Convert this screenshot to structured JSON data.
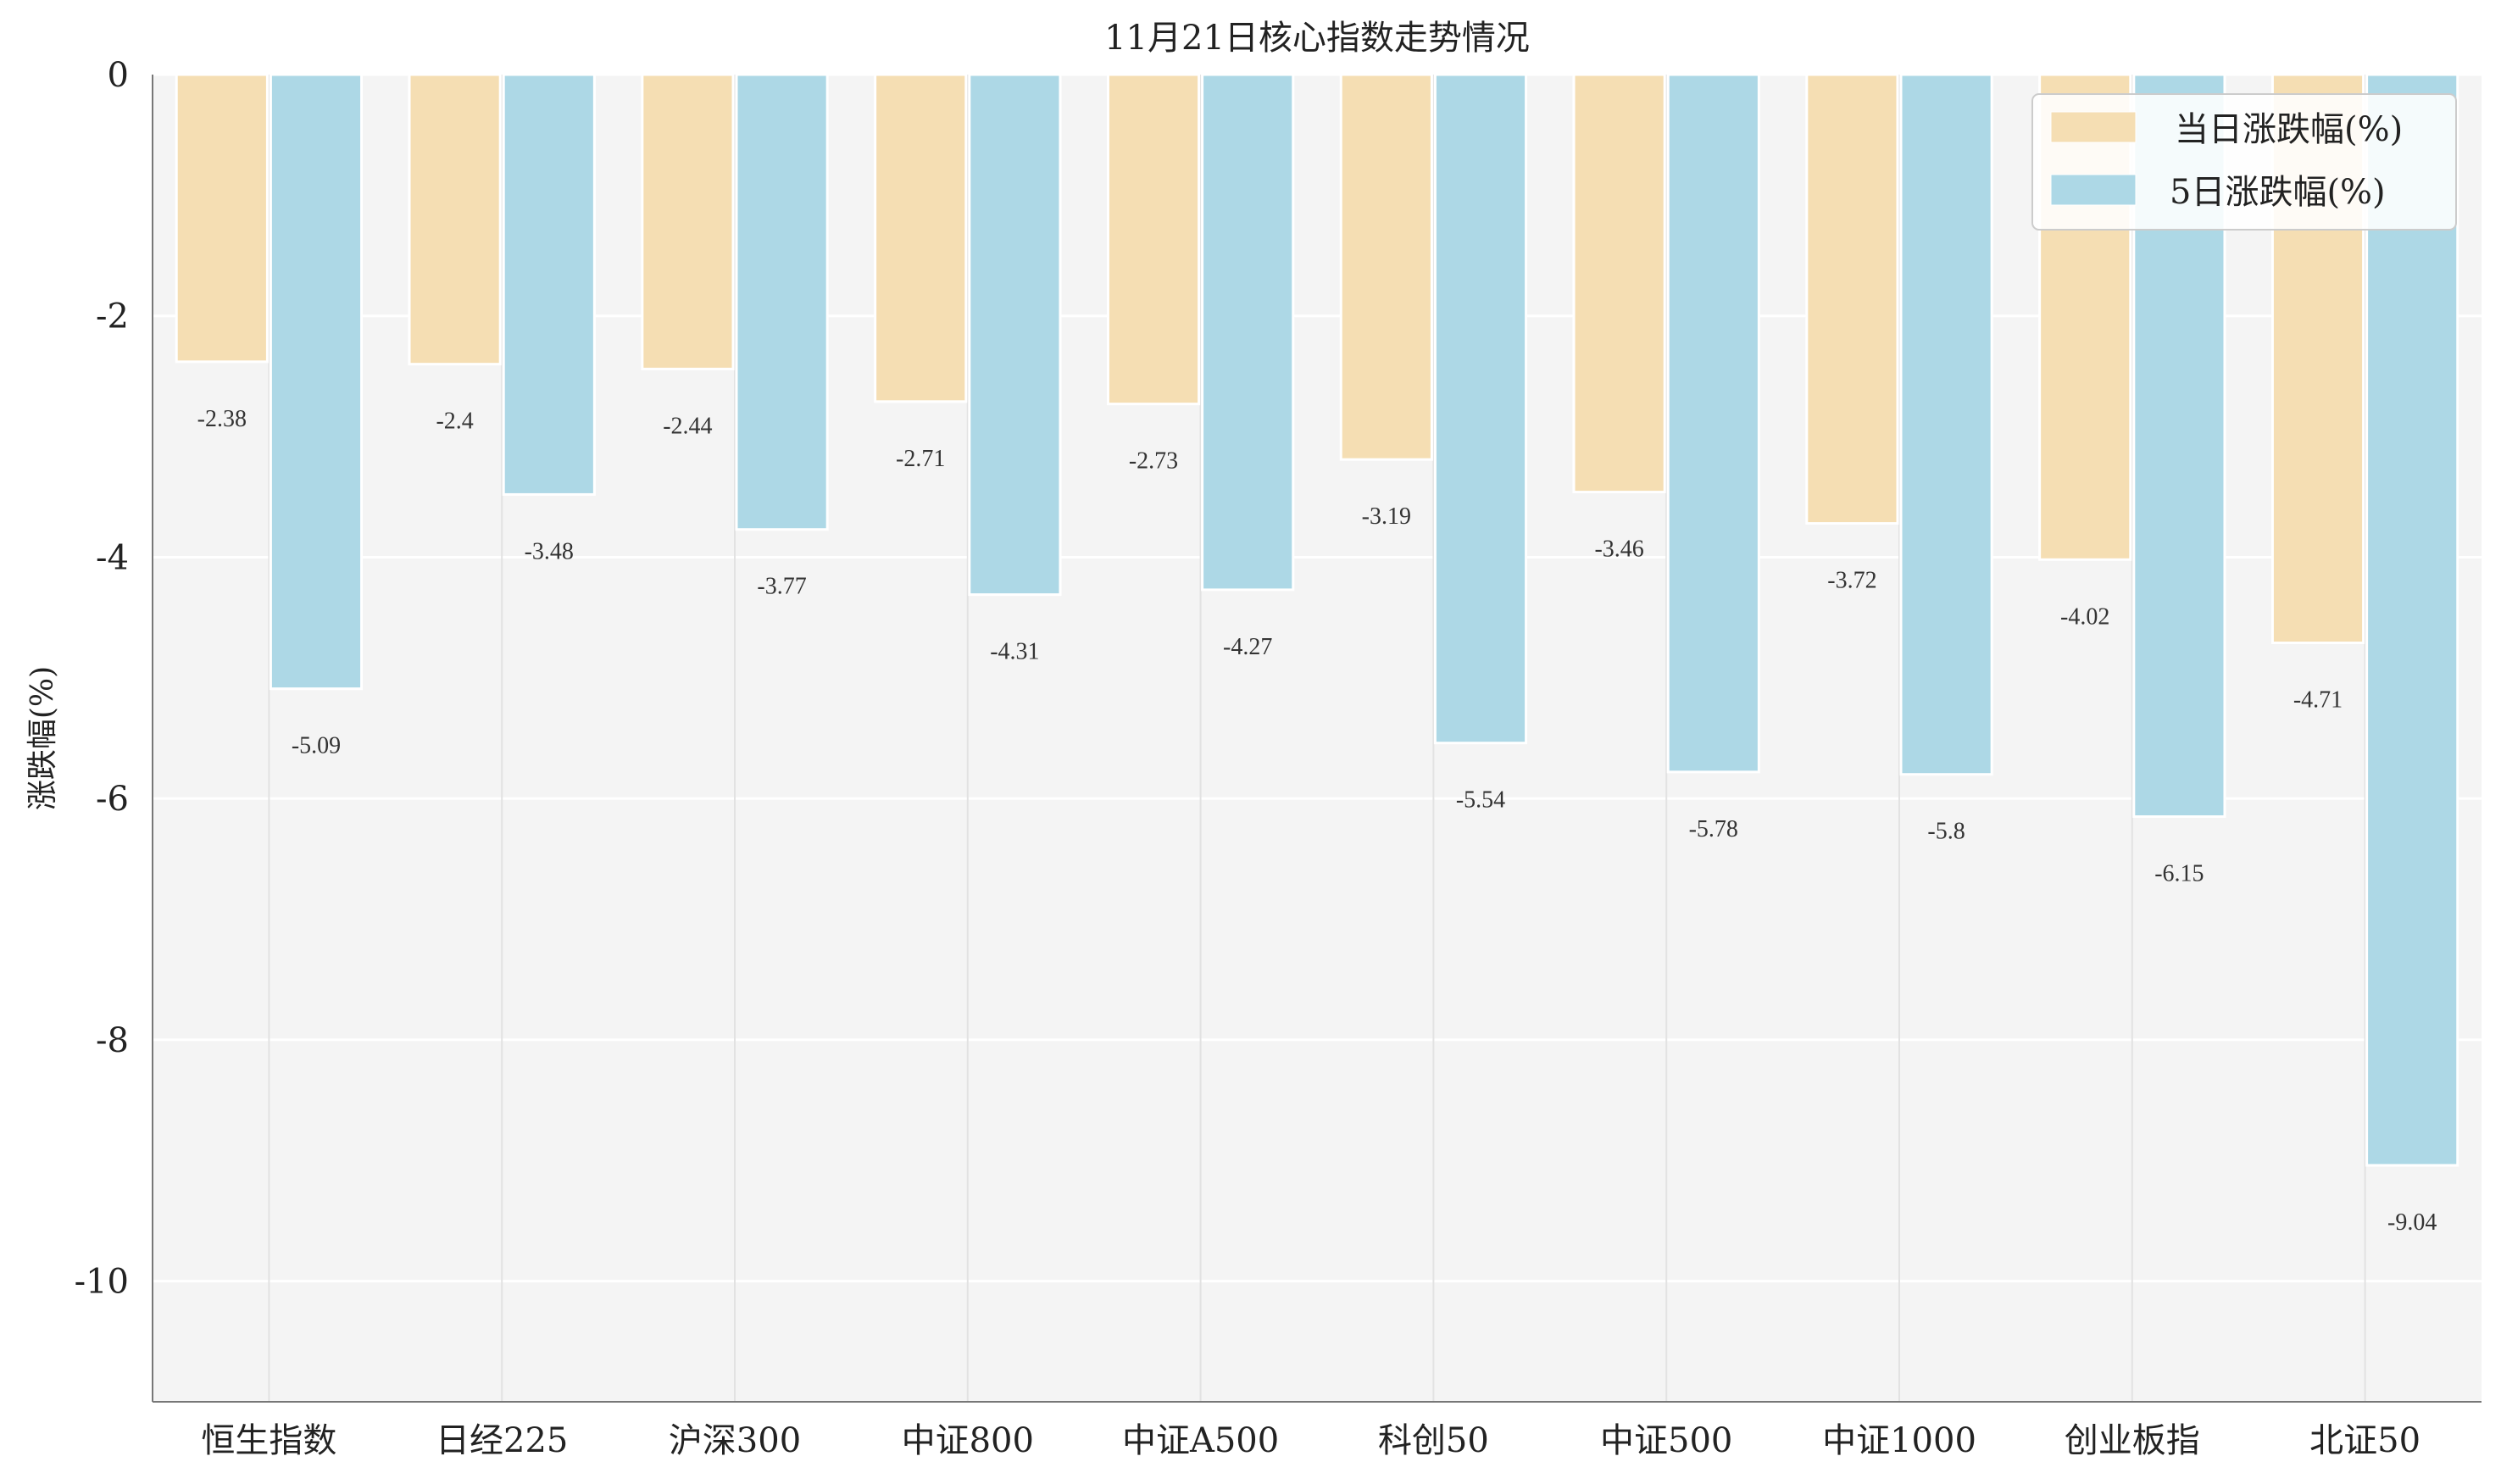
{
  "chart_data": {
    "type": "bar",
    "title": "11月21日核心指数走势情况",
    "xlabel": "",
    "ylabel": "涨跌幅(%)",
    "ylim": [
      -11,
      0
    ],
    "yticks": [
      0,
      -2,
      -4,
      -6,
      -8,
      -10
    ],
    "ytick_labels": [
      "0",
      "-2",
      "-4",
      "-6",
      "-8",
      "-10"
    ],
    "grid": true,
    "legend_position": "top-right",
    "categories": [
      "恒生指数",
      "日经225",
      "沪深300",
      "中证800",
      "中证A500",
      "科创50",
      "中证500",
      "中证1000",
      "创业板指",
      "北证50"
    ],
    "series": [
      {
        "name": "当日涨跌幅(%)",
        "color": "#f5deb3",
        "values": [
          -2.38,
          -2.4,
          -2.44,
          -2.71,
          -2.73,
          -3.19,
          -3.46,
          -3.72,
          -4.02,
          -4.71
        ],
        "labels": [
          "-2.38",
          "-2.4",
          "-2.44",
          "-2.71",
          "-2.73",
          "-3.19",
          "-3.46",
          "-3.72",
          "-4.02",
          "-4.71"
        ]
      },
      {
        "name": "5日涨跌幅(%)",
        "color": "#add8e6",
        "values": [
          -5.09,
          -3.48,
          -3.77,
          -4.31,
          -4.27,
          -5.54,
          -5.78,
          -5.8,
          -6.15,
          -9.04
        ],
        "labels": [
          "-5.09",
          "-3.48",
          "-3.77",
          "-4.31",
          "-4.27",
          "-5.54",
          "-5.78",
          "-5.8",
          "-6.15",
          "-9.04"
        ]
      }
    ]
  }
}
